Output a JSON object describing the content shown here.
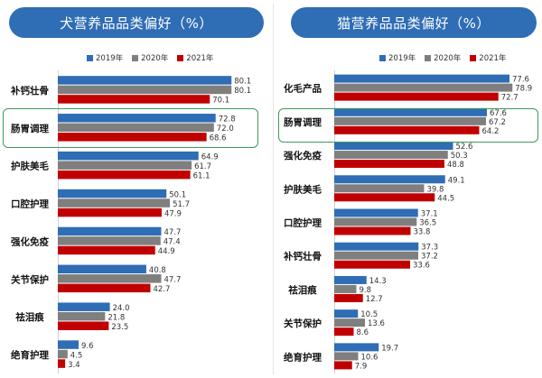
{
  "colors": {
    "y2019": "#2f6db5",
    "y2020": "#7f7f7f",
    "y2021": "#c00000",
    "title_bg": "#2f6db5",
    "highlight": "#3d9a5b"
  },
  "chart_data": [
    {
      "type": "bar",
      "orientation": "horizontal",
      "title": "犬营养品品类偏好（%）",
      "categories": [
        "补钙壮骨",
        "肠胃调理",
        "护肤美毛",
        "口腔护理",
        "强化免疫",
        "关节保护",
        "祛泪痕",
        "绝育护理"
      ],
      "series": [
        {
          "name": "2019年",
          "values": [
            80.1,
            72.8,
            64.9,
            50.1,
            47.7,
            40.8,
            24.0,
            9.6
          ]
        },
        {
          "name": "2020年",
          "values": [
            80.1,
            72.0,
            61.7,
            51.7,
            47.4,
            47.7,
            21.8,
            4.5
          ]
        },
        {
          "name": "2021年",
          "values": [
            70.1,
            68.6,
            61.1,
            47.9,
            44.9,
            42.7,
            23.5,
            3.4
          ]
        }
      ],
      "xlim": [
        0,
        100
      ],
      "highlight_category": "肠胃调理",
      "legend_position": "top"
    },
    {
      "type": "bar",
      "orientation": "horizontal",
      "title": "猫营养品品类偏好（%）",
      "categories": [
        "化毛产品",
        "肠胃调理",
        "强化免疫",
        "护肤美毛",
        "口腔护理",
        "补钙壮骨",
        "祛泪痕",
        "关节保护",
        "绝育护理"
      ],
      "series": [
        {
          "name": "2019年",
          "values": [
            77.6,
            67.6,
            52.6,
            49.1,
            37.1,
            37.3,
            14.3,
            10.5,
            19.7
          ]
        },
        {
          "name": "2020年",
          "values": [
            78.9,
            67.2,
            50.3,
            39.8,
            36.5,
            37.2,
            9.8,
            13.6,
            10.6
          ]
        },
        {
          "name": "2021年",
          "values": [
            72.7,
            64.2,
            48.8,
            44.5,
            33.8,
            33.6,
            12.7,
            8.6,
            7.9
          ]
        }
      ],
      "xlim": [
        0,
        100
      ],
      "highlight_category": "肠胃调理",
      "legend_position": "top"
    }
  ]
}
